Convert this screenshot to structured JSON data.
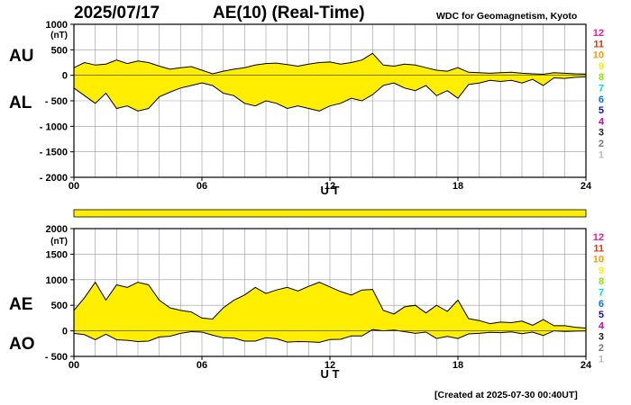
{
  "header": {
    "date": "2025/07/17",
    "title": "AE(10) (Real-Time)",
    "source": "WDC for Geomagnetism, Kyoto"
  },
  "footer": {
    "created": "[Created at 2025-07-30 00:40UT]"
  },
  "station_count_legend": [
    "12",
    "11",
    "10",
    "9",
    "8",
    "7",
    "6",
    "5",
    "4",
    "3",
    "2",
    "1"
  ],
  "colors": {
    "fill": "#ffee00",
    "legend": [
      "#ff1493",
      "#ff2a00",
      "#ff9900",
      "#ffee00",
      "#88ee00",
      "#00dddd",
      "#0077ff",
      "#1111cc",
      "#cc00cc",
      "#222222",
      "#777777",
      "#bbbbbb"
    ]
  },
  "chart_data": [
    {
      "type": "area",
      "unit": "(nT)",
      "xlabel": "U T",
      "xticks": [
        "00",
        "06",
        "12",
        "18",
        "24"
      ],
      "yticks": [
        "1000",
        "500",
        "0",
        "- 500",
        "- 1000",
        "- 1500",
        "- 2000"
      ],
      "ylim": [
        -2000,
        1000
      ],
      "xlim": [
        0,
        24
      ],
      "grid": true,
      "series_labels": [
        "AU",
        "AL"
      ],
      "series": [
        {
          "name": "AU",
          "x": [
            0,
            0.5,
            1,
            1.5,
            2,
            2.5,
            3,
            3.5,
            4,
            4.5,
            5,
            5.5,
            6,
            6.5,
            7,
            7.5,
            8,
            8.5,
            9,
            9.5,
            10,
            10.5,
            11,
            11.5,
            12,
            12.5,
            13,
            13.5,
            14,
            14.5,
            15,
            15.5,
            16,
            16.5,
            17,
            17.5,
            18,
            18.5,
            19,
            19.5,
            20,
            20.5,
            21,
            21.5,
            22,
            22.5,
            23,
            23.5,
            24
          ],
          "values": [
            150,
            250,
            200,
            220,
            300,
            230,
            280,
            250,
            180,
            120,
            150,
            170,
            100,
            30,
            80,
            120,
            150,
            200,
            230,
            240,
            210,
            180,
            220,
            250,
            260,
            220,
            250,
            300,
            430,
            200,
            180,
            220,
            200,
            150,
            100,
            80,
            150,
            60,
            50,
            40,
            50,
            60,
            40,
            30,
            20,
            50,
            40,
            30,
            25
          ]
        },
        {
          "name": "AL",
          "x": [
            0,
            0.5,
            1,
            1.5,
            2,
            2.5,
            3,
            3.5,
            4,
            4.5,
            5,
            5.5,
            6,
            6.5,
            7,
            7.5,
            8,
            8.5,
            9,
            9.5,
            10,
            10.5,
            11,
            11.5,
            12,
            12.5,
            13,
            13.5,
            14,
            14.5,
            15,
            15.5,
            16,
            16.5,
            17,
            17.5,
            18,
            18.5,
            19,
            19.5,
            20,
            20.5,
            21,
            21.5,
            22,
            22.5,
            23,
            23.5,
            24
          ],
          "values": [
            -250,
            -400,
            -550,
            -350,
            -650,
            -600,
            -700,
            -650,
            -420,
            -330,
            -250,
            -200,
            -150,
            -200,
            -350,
            -400,
            -550,
            -600,
            -500,
            -550,
            -650,
            -600,
            -650,
            -700,
            -600,
            -550,
            -450,
            -500,
            -380,
            -200,
            -150,
            -250,
            -300,
            -200,
            -400,
            -300,
            -450,
            -180,
            -150,
            -100,
            -120,
            -100,
            -150,
            -80,
            -200,
            -50,
            -60,
            -40,
            -30
          ]
        }
      ]
    },
    {
      "type": "area",
      "unit": "(nT)",
      "xlabel": "U T",
      "xticks": [
        "00",
        "06",
        "12",
        "18",
        "24"
      ],
      "yticks": [
        "2000",
        "1500",
        "1000",
        "500",
        "0",
        "- 500"
      ],
      "ylim": [
        -500,
        2000
      ],
      "xlim": [
        0,
        24
      ],
      "grid": true,
      "series_labels": [
        "AE",
        "AO"
      ],
      "series": [
        {
          "name": "AE",
          "x": [
            0,
            0.5,
            1,
            1.5,
            2,
            2.5,
            3,
            3.5,
            4,
            4.5,
            5,
            5.5,
            6,
            6.5,
            7,
            7.5,
            8,
            8.5,
            9,
            9.5,
            10,
            10.5,
            11,
            11.5,
            12,
            12.5,
            13,
            13.5,
            14,
            14.5,
            15,
            15.5,
            16,
            16.5,
            17,
            17.5,
            18,
            18.5,
            19,
            19.5,
            20,
            20.5,
            21,
            21.5,
            22,
            22.5,
            23,
            23.5,
            24
          ],
          "values": [
            400,
            650,
            950,
            600,
            900,
            850,
            950,
            900,
            600,
            450,
            400,
            370,
            250,
            230,
            450,
            600,
            700,
            850,
            730,
            800,
            850,
            780,
            870,
            950,
            860,
            770,
            700,
            800,
            810,
            400,
            330,
            470,
            500,
            350,
            500,
            380,
            600,
            240,
            200,
            140,
            170,
            160,
            190,
            110,
            220,
            100,
            100,
            70,
            55
          ]
        },
        {
          "name": "AO",
          "x": [
            0,
            0.5,
            1,
            1.5,
            2,
            2.5,
            3,
            3.5,
            4,
            4.5,
            5,
            5.5,
            6,
            6.5,
            7,
            7.5,
            8,
            8.5,
            9,
            9.5,
            10,
            10.5,
            11,
            11.5,
            12,
            12.5,
            13,
            13.5,
            14,
            14.5,
            15,
            15.5,
            16,
            16.5,
            17,
            17.5,
            18,
            18.5,
            19,
            19.5,
            20,
            20.5,
            21,
            21.5,
            22,
            22.5,
            23,
            23.5,
            24
          ],
          "values": [
            -50,
            -75,
            -175,
            -65,
            -175,
            -185,
            -210,
            -200,
            -120,
            -105,
            -50,
            -15,
            -25,
            -85,
            -135,
            -140,
            -200,
            -200,
            -135,
            -155,
            -220,
            -210,
            -215,
            -225,
            -170,
            -165,
            -100,
            -100,
            25,
            0,
            15,
            -15,
            -50,
            -25,
            -150,
            -110,
            -150,
            -60,
            -50,
            -30,
            -35,
            -20,
            -55,
            -25,
            -90,
            0,
            -10,
            -5,
            -3
          ]
        }
      ]
    }
  ]
}
